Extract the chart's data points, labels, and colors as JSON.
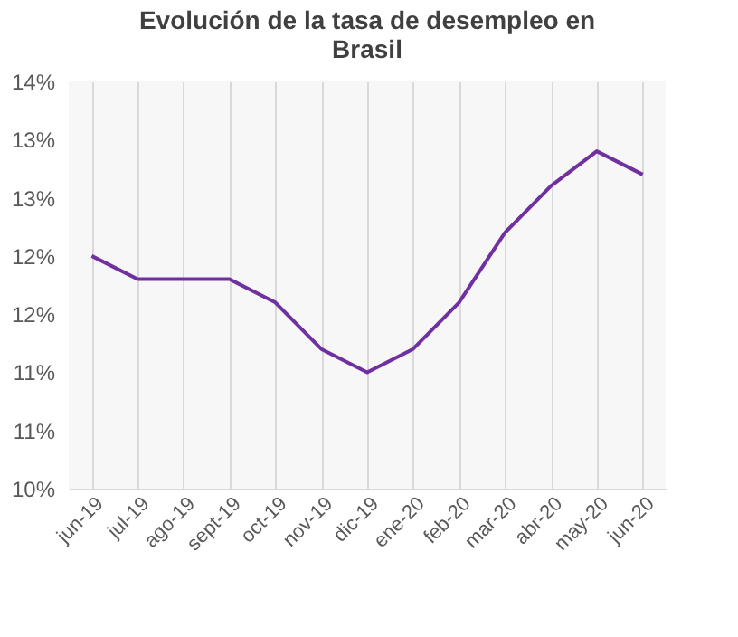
{
  "chart_data": {
    "type": "line",
    "title": [
      "Evolución  de la tasa de desempleo  en",
      "Brasil"
    ],
    "categories": [
      "jun-19",
      "jul-19",
      "ago-19",
      "sept-19",
      "oct-19",
      "nov-19",
      "dic-19",
      "ene-20",
      "feb-20",
      "mar-20",
      "abr-20",
      "may-20",
      "jun-20"
    ],
    "series": [
      {
        "color": "#7030a0",
        "values": [
          12.0,
          11.8,
          11.8,
          11.8,
          11.6,
          11.2,
          11.0,
          11.2,
          11.6,
          12.2,
          12.6,
          12.9,
          12.7
        ]
      }
    ],
    "ylim": [
      10,
      13.5
    ],
    "yticks": [
      {
        "value": 10,
        "label": "10%"
      },
      {
        "value": 10.5,
        "label": "11%"
      },
      {
        "value": 11,
        "label": "11%"
      },
      {
        "value": 11.5,
        "label": "12%"
      },
      {
        "value": 12,
        "label": "12%"
      },
      {
        "value": 12.5,
        "label": "13%"
      },
      {
        "value": 13,
        "label": "13%"
      },
      {
        "value": 13.5,
        "label": "14%"
      }
    ],
    "grid": "x",
    "marker": "none",
    "line_style": "solid"
  }
}
